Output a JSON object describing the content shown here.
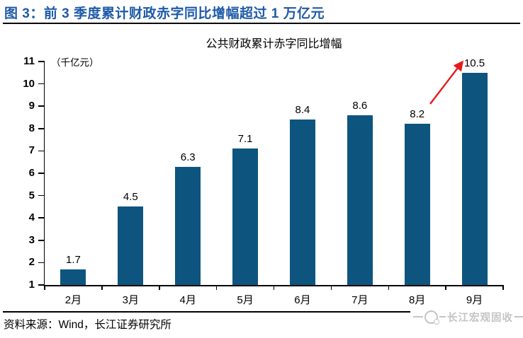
{
  "header": {
    "title": "图 3：前 3 季度累计财政赤字同比增幅超过 1 万亿元"
  },
  "colors": {
    "title_blue": "#1E5AA8",
    "bar_blue": "#0D557E",
    "arrow_red": "#E8191C",
    "logo_gray": "#C4C4C4",
    "axis_black": "#000000"
  },
  "chart_data": {
    "type": "bar",
    "title": "公共财政累计赤字同比增幅",
    "unit_label": "（千亿元）",
    "categories": [
      "2月",
      "3月",
      "4月",
      "5月",
      "6月",
      "7月",
      "8月",
      "9月"
    ],
    "values": [
      1.7,
      4.5,
      6.3,
      7.1,
      8.4,
      8.6,
      8.2,
      10.5
    ],
    "ylim": [
      1,
      11
    ],
    "ytick_step": 1,
    "grid": false,
    "legend": "none",
    "annotation": {
      "type": "arrow",
      "color": "#E8191C",
      "from": "8月 (8.2)",
      "to": "9月 (10.5)"
    }
  },
  "footer": {
    "source": "资料来源：Wind，长江证券研究所",
    "logo_text": "长江宏观固收"
  }
}
